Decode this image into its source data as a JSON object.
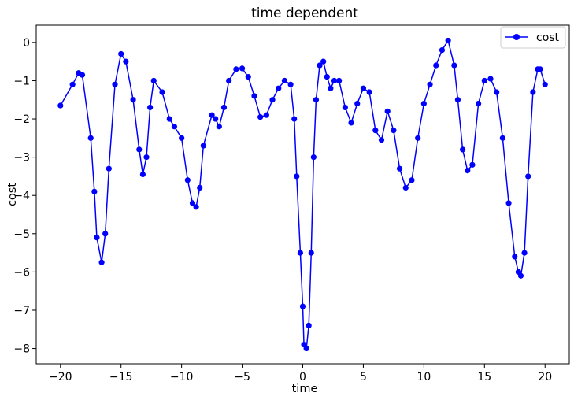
{
  "chart_data": {
    "type": "line",
    "title": "time dependent",
    "xlabel": "time",
    "ylabel": "cost",
    "xlim": [
      -22,
      22
    ],
    "ylim": [
      -8.4,
      0.45
    ],
    "xticks": [
      -20,
      -15,
      -10,
      -5,
      0,
      5,
      10,
      15,
      20
    ],
    "xtick_labels": [
      "−20",
      "−15",
      "−10",
      "−5",
      "0",
      "5",
      "10",
      "15",
      "20"
    ],
    "yticks": [
      0,
      -1,
      -2,
      -3,
      -4,
      -5,
      -6,
      -7,
      -8
    ],
    "ytick_labels": [
      "0",
      "−1",
      "−2",
      "−3",
      "−4",
      "−5",
      "−6",
      "−7",
      "−8"
    ],
    "grid": false,
    "legend": {
      "placement": "top-right",
      "entries": [
        "cost"
      ]
    },
    "series": [
      {
        "name": "cost",
        "color": "#0000ff",
        "marker": "circle",
        "x": [
          -20.0,
          -19.0,
          -18.5,
          -18.2,
          -17.5,
          -17.2,
          -17.0,
          -16.6,
          -16.3,
          -16.0,
          -15.5,
          -15.0,
          -14.6,
          -14.0,
          -13.5,
          -13.2,
          -12.9,
          -12.6,
          -12.3,
          -11.6,
          -11.0,
          -10.6,
          -10.0,
          -9.5,
          -9.1,
          -8.8,
          -8.5,
          -8.2,
          -7.5,
          -7.2,
          -6.9,
          -6.5,
          -6.1,
          -5.5,
          -5.0,
          -4.5,
          -4.0,
          -3.5,
          -3.0,
          -2.5,
          -2.0,
          -1.5,
          -1.0,
          -0.7,
          -0.5,
          -0.2,
          0.0,
          0.1,
          0.3,
          0.5,
          0.7,
          0.9,
          1.1,
          1.4,
          1.7,
          2.0,
          2.3,
          2.6,
          3.0,
          3.5,
          4.0,
          4.5,
          5.0,
          5.5,
          6.0,
          6.5,
          7.0,
          7.5,
          8.0,
          8.5,
          9.0,
          9.5,
          10.0,
          10.5,
          11.0,
          11.5,
          12.0,
          12.5,
          12.8,
          13.2,
          13.6,
          14.0,
          14.5,
          15.0,
          15.5,
          16.0,
          16.5,
          17.0,
          17.5,
          17.8,
          18.0,
          18.3,
          18.6,
          19.0,
          19.4,
          19.6,
          20.0
        ],
        "y": [
          -1.65,
          -1.1,
          -0.8,
          -0.85,
          -2.5,
          -3.9,
          -5.1,
          -5.75,
          -5.0,
          -3.3,
          -1.1,
          -0.3,
          -0.5,
          -1.5,
          -2.8,
          -3.45,
          -3.0,
          -1.7,
          -1.0,
          -1.3,
          -2.0,
          -2.2,
          -2.5,
          -3.6,
          -4.2,
          -4.3,
          -3.8,
          -2.7,
          -1.9,
          -2.0,
          -2.2,
          -1.7,
          -1.0,
          -0.7,
          -0.68,
          -0.9,
          -1.4,
          -1.95,
          -1.9,
          -1.5,
          -1.2,
          -1.0,
          -1.1,
          -2.0,
          -3.5,
          -5.5,
          -6.9,
          -7.9,
          -8.0,
          -7.4,
          -5.5,
          -3.0,
          -1.5,
          -0.6,
          -0.5,
          -0.9,
          -1.2,
          -1.0,
          -1.0,
          -1.7,
          -2.1,
          -1.6,
          -1.2,
          -1.3,
          -2.3,
          -2.55,
          -1.8,
          -2.3,
          -3.3,
          -3.8,
          -3.6,
          -2.5,
          -1.6,
          -1.1,
          -0.6,
          -0.2,
          0.05,
          -0.6,
          -1.5,
          -2.8,
          -3.35,
          -3.2,
          -1.6,
          -1.0,
          -0.95,
          -1.3,
          -2.5,
          -4.2,
          -5.6,
          -6.0,
          -6.1,
          -5.5,
          -3.5,
          -1.3,
          -0.7,
          -0.7,
          -1.1
        ]
      }
    ]
  }
}
